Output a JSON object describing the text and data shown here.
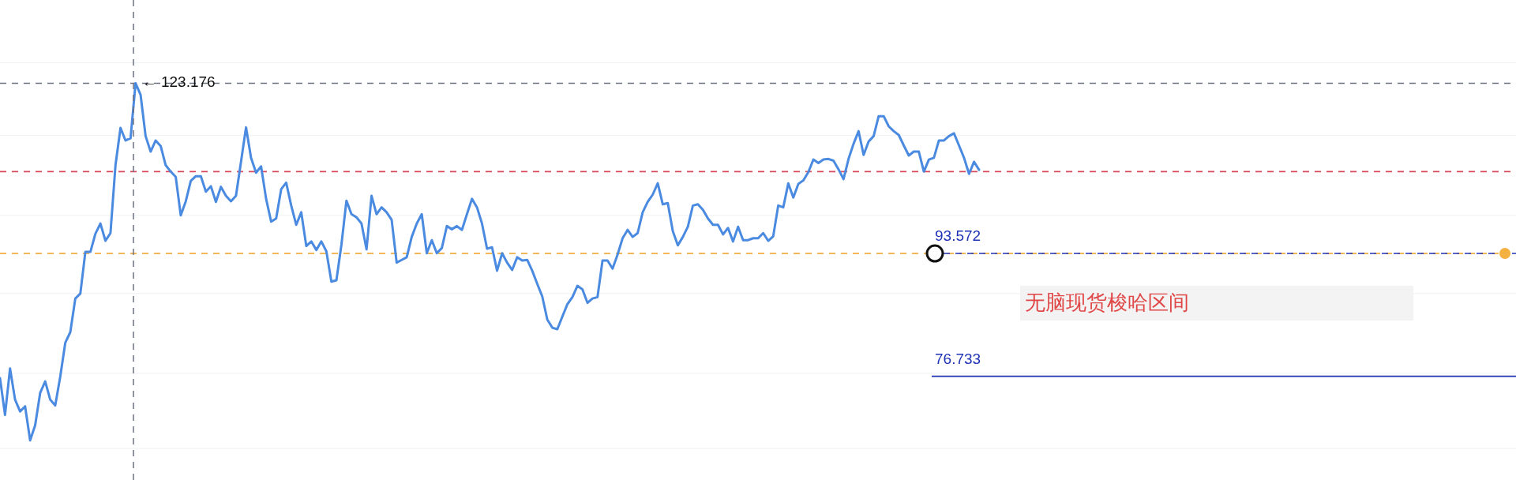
{
  "chart_data": {
    "type": "line",
    "categories": [
      null,
      null,
      null,
      null,
      null,
      null,
      null,
      null,
      null,
      null,
      null,
      null,
      null,
      null,
      null,
      null,
      null,
      null,
      null,
      null,
      null,
      null,
      null,
      null,
      null,
      null,
      null,
      null,
      null,
      null,
      null,
      null,
      null,
      null,
      null,
      null,
      null,
      null,
      null,
      null,
      null,
      null,
      null,
      null,
      null,
      null,
      null,
      null,
      null,
      null,
      null,
      null,
      null,
      null,
      null,
      null,
      null,
      null,
      null,
      null,
      null,
      null,
      null,
      null,
      null,
      null,
      null,
      null,
      null,
      null,
      null,
      null,
      null,
      null,
      null,
      null,
      null,
      null,
      null,
      null,
      null,
      null,
      null,
      null,
      null,
      null,
      null,
      null,
      null,
      null,
      null,
      null,
      null,
      null,
      null,
      null,
      null,
      null,
      null,
      null,
      null,
      null,
      null,
      null,
      null,
      null,
      null,
      null,
      null,
      null,
      null,
      null,
      null,
      null,
      null,
      null,
      null,
      null,
      null,
      null,
      null,
      null,
      null,
      null,
      null,
      null,
      null,
      null,
      null,
      null,
      null,
      null,
      null,
      null,
      null,
      null,
      null,
      null,
      null,
      null,
      null,
      null,
      null,
      null,
      null,
      null,
      null,
      null,
      null,
      null,
      null,
      null,
      null,
      null,
      null,
      null,
      null,
      null,
      null,
      null,
      null,
      null,
      null,
      null,
      null,
      null,
      null,
      null,
      null,
      null,
      null,
      null,
      null,
      null,
      null,
      null,
      null,
      null,
      null,
      null,
      null,
      null,
      null,
      null,
      null,
      null,
      null,
      null,
      null,
      null,
      null,
      null,
      null,
      null,
      null,
      null
    ],
    "values": [
      76.5,
      72.1,
      77.7,
      73.9,
      72.5,
      73.1,
      69.2,
      70.9,
      74.7,
      76.1,
      73.9,
      73.2,
      76.7,
      81.0,
      82.4,
      87.0,
      87.7,
      93.8,
      93.8,
      96.6,
      98.2,
      95.5,
      96.7,
      107.9,
      114.6,
      112.3,
      112.7,
      123.176,
      120.9,
      113.1,
      110.3,
      112.3,
      111.3,
      107.9,
      106.8,
      105.9,
      99.5,
      101.8,
      105.2,
      106.0,
      106.0,
      103.4,
      104.3,
      101.7,
      104.2,
      102.7,
      101.8,
      102.7,
      108.5,
      114.7,
      109.2,
      106.6,
      107.7,
      102.2,
      98.5,
      99.0,
      103.8,
      104.9,
      101.1,
      98.0,
      100.0,
      94.7,
      95.4,
      94.1,
      95.4,
      93.9,
      89.4,
      89.6,
      94.9,
      101.9,
      99.7,
      99.2,
      98.2,
      94.2,
      102.7,
      99.7,
      100.8,
      100.0,
      98.8,
      92.2,
      92.6,
      93.0,
      96.1,
      98.2,
      99.7,
      93.6,
      95.6,
      93.6,
      94.4,
      97.8,
      97.3,
      97.8,
      97.2,
      99.7,
      102.2,
      100.8,
      98.2,
      94.3,
      94.5,
      91.0,
      93.6,
      92.2,
      91.1,
      93.0,
      92.5,
      92.6,
      91.0,
      89.1,
      87.3,
      84.1,
      83.0,
      82.8,
      84.5,
      86.2,
      87.2,
      88.8,
      88.3,
      86.4,
      87.0,
      87.2,
      92.5,
      92.5,
      91.3,
      93.4,
      95.9,
      97.2,
      96.1,
      96.7,
      100.0,
      101.7,
      102.9,
      104.8,
      101.3,
      101.5,
      97.0,
      94.8,
      96.1,
      97.7,
      101.1,
      101.3,
      100.4,
      99.0,
      98.0,
      98.0,
      96.5,
      97.5,
      95.4,
      97.7,
      95.6,
      95.6,
      95.9,
      95.9,
      96.7,
      95.5,
      96.2,
      101.1,
      100.8,
      104.8,
      102.4,
      104.7,
      105.3,
      106.7,
      108.9,
      108.3,
      108.9,
      109.0,
      108.7,
      107.2,
      105.5,
      109.0,
      111.7,
      114.0,
      109.7,
      112.1,
      113.1,
      116.8,
      116.8,
      114.9,
      114.0,
      113.3,
      111.4,
      109.6,
      110.3,
      110.3,
      106.8,
      108.9,
      109.2,
      112.3,
      112.3,
      113.1,
      113.6,
      111.4,
      109.2,
      106.4,
      108.5,
      107.1
    ],
    "color": "#4a8ae0",
    "log": true,
    "ylim": [
      64.9,
      140.9
    ],
    "yticks": [
      {
        "value": 127.3,
        "label": null
      },
      {
        "value": 113.2,
        "label": null
      },
      {
        "value": 99.5,
        "label": null
      },
      {
        "value": 87.7,
        "label": null
      },
      {
        "value": 77.1,
        "label": null
      },
      {
        "value": 68.3,
        "label": null
      }
    ],
    "grid": "y",
    "ref_lines": [
      {
        "axis": "y",
        "value": 123.176,
        "color": "#6b7280",
        "line_style": "dashed"
      },
      {
        "axis": "y",
        "value": 106.8,
        "color": "#d9485a",
        "line_style": "dashed"
      },
      {
        "axis": "y",
        "value": 93.572,
        "color": "#f0a020",
        "line_style": "dashed"
      },
      {
        "axis": "y",
        "value": 93.572,
        "label": "93.572",
        "color": "#1f33b5",
        "line_style": "dashed"
      },
      {
        "axis": "y",
        "value": 76.733,
        "label": "76.733",
        "color": "#1f33b5",
        "line_style": "solid"
      }
    ],
    "annotations": [
      {
        "text": "← 123.176",
        "y": 123.176
      },
      "无脑现货梭哈区间"
    ]
  }
}
